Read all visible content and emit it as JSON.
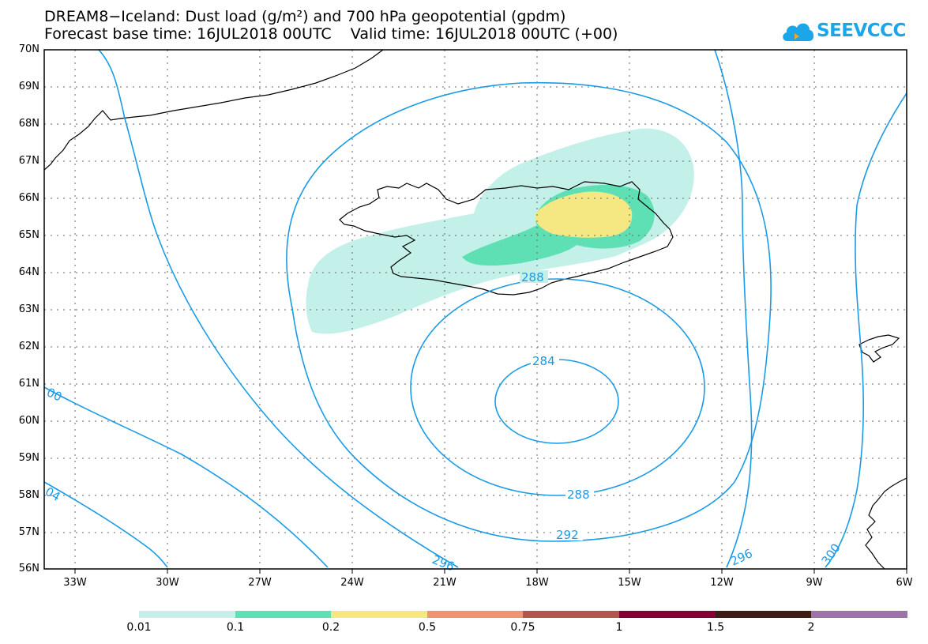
{
  "title": {
    "line1": "DREAM8−Iceland: Dust load (g/m²) and 700 hPa geopotential (gpdm)",
    "line2": "Forecast base time: 16JUL2018 00UTC    Valid time: 16JUL2018 00UTC (+00)"
  },
  "logo": {
    "text": "SEEVCCC",
    "icon": "cloud-icon",
    "color": "#1aa6e8"
  },
  "map": {
    "lat_labels": [
      "70N",
      "69N",
      "68N",
      "67N",
      "66N",
      "65N",
      "64N",
      "63N",
      "62N",
      "61N",
      "60N",
      "59N",
      "58N",
      "57N",
      "56N"
    ],
    "lon_labels": [
      "33W",
      "30W",
      "27W",
      "24W",
      "21W",
      "18W",
      "15W",
      "12W",
      "9W",
      "6W"
    ],
    "contour_color": "#1a9be6",
    "contour_labels": [
      "288",
      "284",
      "288",
      "292",
      "296",
      "296",
      "300",
      "00",
      "04"
    ]
  },
  "colorbar": {
    "colors": [
      "#c3f1ea",
      "#5ee0b4",
      "#f5e882",
      "#ef9470",
      "#b0564e",
      "#850033",
      "#3c1e16",
      "#9a74a6"
    ],
    "labels": [
      "0.01",
      "0.1",
      "0.2",
      "0.5",
      "0.75",
      "1",
      "1.5",
      "2"
    ]
  }
}
